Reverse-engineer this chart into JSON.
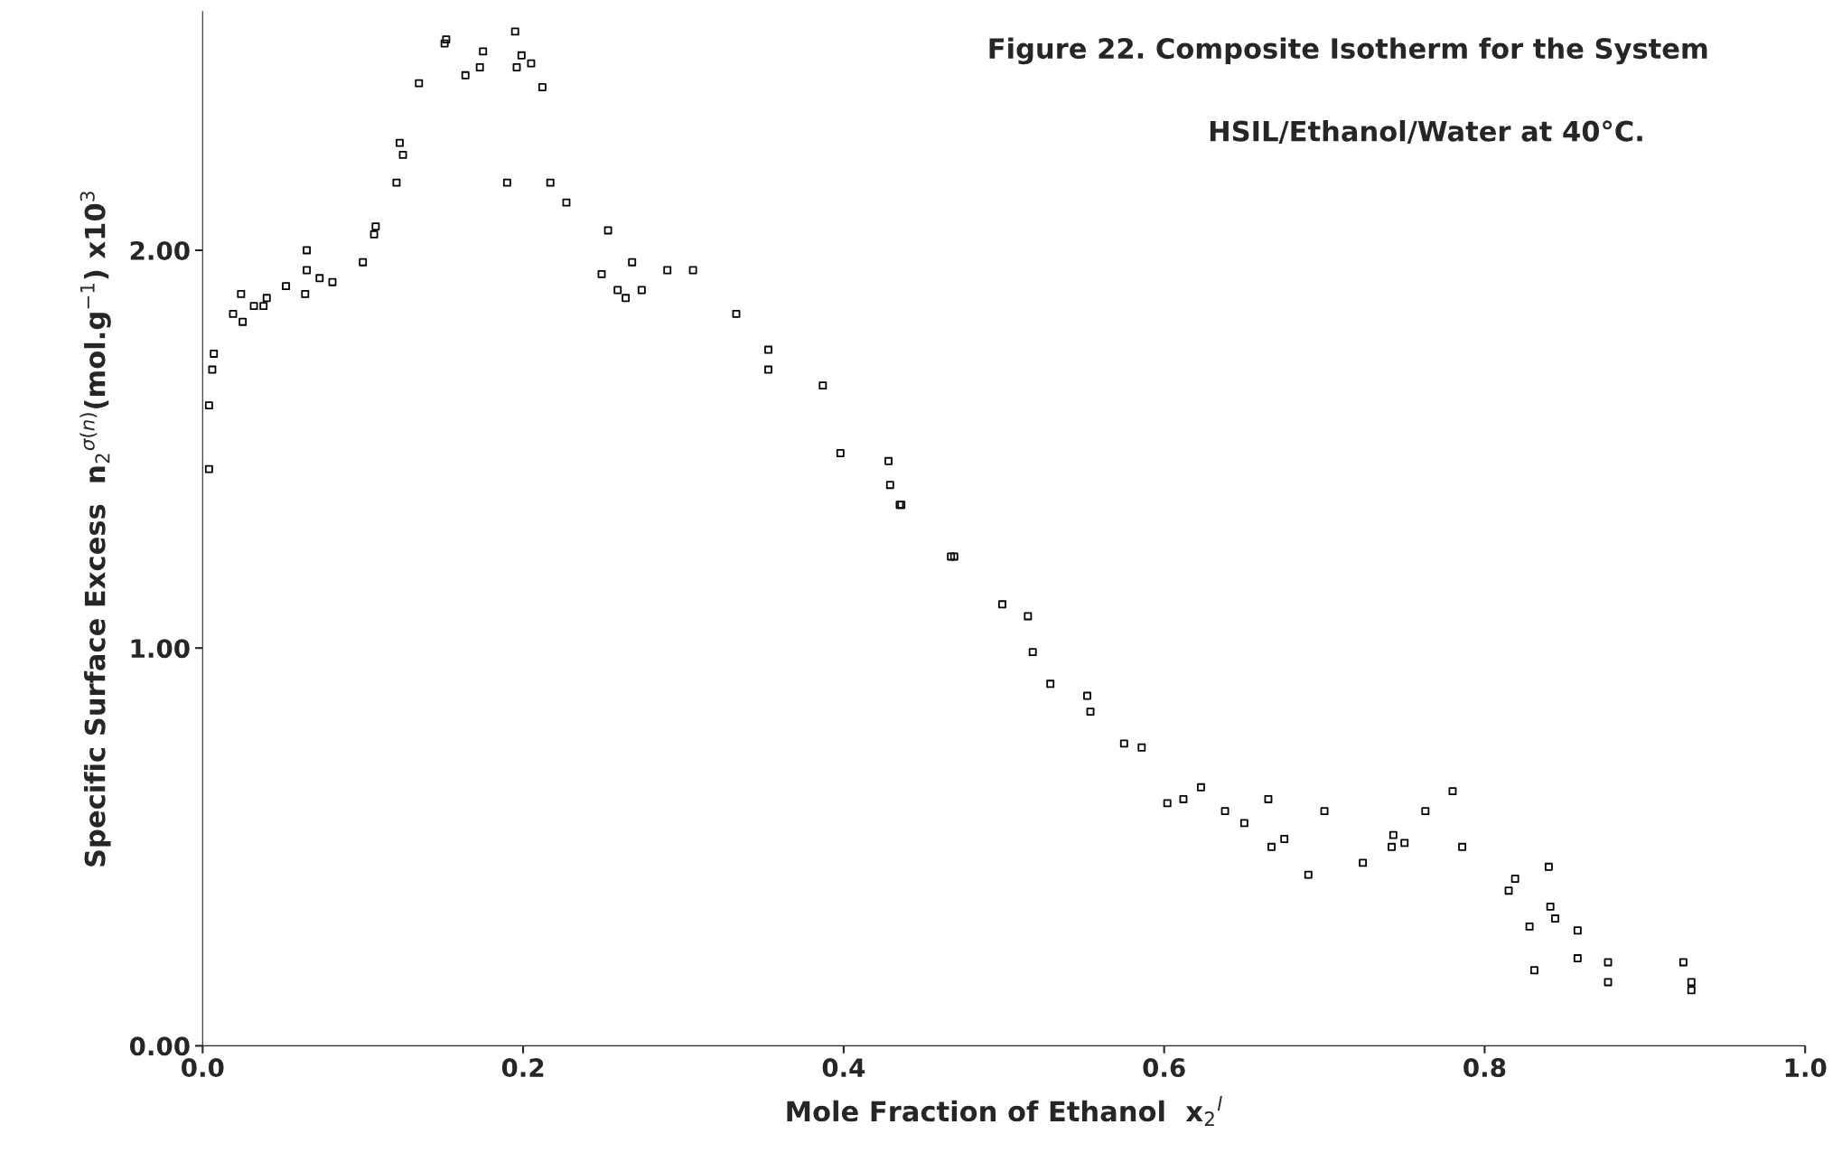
{
  "chart_data": {
    "type": "scatter",
    "title": "Figure 22. Composite Isotherm for the System",
    "subtitle": "HSIL/Ethanol/Water at 40°C.",
    "xlabel": "Mole Fraction of Ethanol  x$_{2}$$^{l}$",
    "ylabel": "Specific Surface Excess  n$_{2}$$^{σ(n)}$(mol.g$^{−1}$) x10$^{3}$",
    "marker": "square",
    "series": [
      {
        "color": "#000000",
        "x": [
          0.004,
          0.004,
          0.006,
          0.007,
          0.019,
          0.024,
          0.025,
          0.032,
          0.038,
          0.04,
          0.052,
          0.064,
          0.065,
          0.065,
          0.073,
          0.081,
          0.1,
          0.107,
          0.108,
          0.121,
          0.123,
          0.125,
          0.135,
          0.151,
          0.152,
          0.164,
          0.173,
          0.175,
          0.19,
          0.195,
          0.196,
          0.199,
          0.205,
          0.212,
          0.217,
          0.227,
          0.249,
          0.253,
          0.259,
          0.264,
          0.268,
          0.274,
          0.29,
          0.306,
          0.333,
          0.353,
          0.353,
          0.387,
          0.398,
          0.428,
          0.429,
          0.435,
          0.436,
          0.467,
          0.469,
          0.499,
          0.515,
          0.518,
          0.529,
          0.552,
          0.554,
          0.575,
          0.586,
          0.602,
          0.612,
          0.623,
          0.638,
          0.65,
          0.665,
          0.667,
          0.675,
          0.69,
          0.7,
          0.724,
          0.743,
          0.742,
          0.75,
          0.763,
          0.78,
          0.786,
          0.815,
          0.819,
          0.828,
          0.831,
          0.84,
          0.841,
          0.844,
          0.858,
          0.858,
          0.877,
          0.877,
          0.924,
          0.929,
          0.929
        ],
        "values": [
          1.45,
          1.61,
          1.7,
          1.74,
          1.84,
          1.89,
          1.82,
          1.86,
          1.86,
          1.88,
          1.91,
          1.89,
          2.0,
          1.95,
          1.93,
          1.92,
          1.97,
          2.04,
          2.06,
          2.17,
          2.27,
          2.24,
          2.42,
          2.52,
          2.53,
          2.44,
          2.46,
          2.5,
          2.17,
          2.55,
          2.46,
          2.49,
          2.47,
          2.41,
          2.17,
          2.12,
          1.94,
          2.05,
          1.9,
          1.88,
          1.97,
          1.9,
          1.95,
          1.95,
          1.84,
          1.75,
          1.7,
          1.66,
          1.49,
          1.47,
          1.41,
          1.36,
          1.36,
          1.23,
          1.23,
          1.11,
          1.08,
          0.99,
          0.91,
          0.88,
          0.84,
          0.76,
          0.75,
          0.61,
          0.62,
          0.65,
          0.59,
          0.56,
          0.62,
          0.5,
          0.52,
          0.43,
          0.59,
          0.46,
          0.53,
          0.5,
          0.51,
          0.59,
          0.64,
          0.5,
          0.39,
          0.42,
          0.3,
          0.19,
          0.45,
          0.35,
          0.32,
          0.29,
          0.22,
          0.21,
          0.16,
          0.21,
          0.16,
          0.14
        ]
      }
    ],
    "xlim": [
      0,
      1.0
    ],
    "ylim": [
      0,
      2.6
    ],
    "xticks": [
      {
        "value": 0,
        "label": "0.0"
      },
      0.2,
      0.4,
      0.6,
      0.8,
      {
        "value": 1.0,
        "label": "1.0"
      }
    ],
    "yticks": [
      {
        "value": 0,
        "label": "0.00"
      },
      {
        "value": 1,
        "label": "1.00"
      },
      {
        "value": 2,
        "label": "2.00"
      }
    ]
  }
}
